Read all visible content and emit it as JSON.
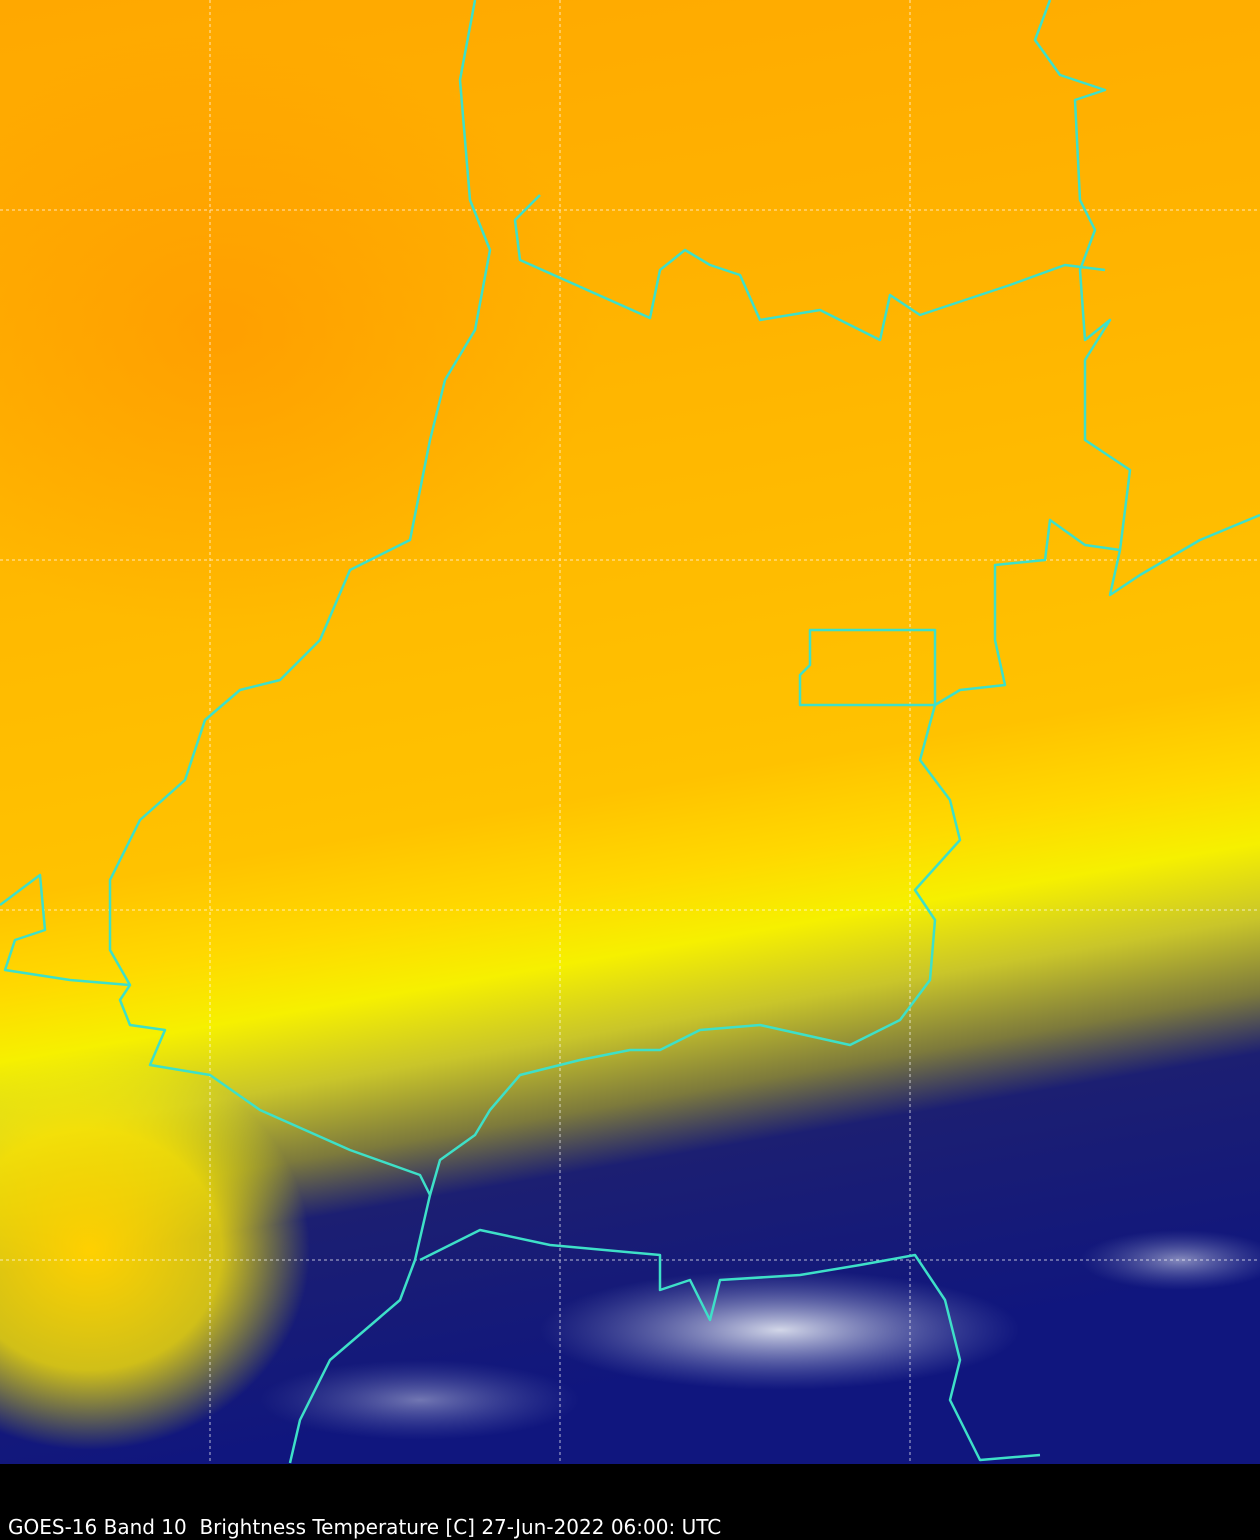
{
  "caption": "GOES-16 Band 10  Brightness Temperature [C] 27-Jun-2022 06:00: UTC"
}
